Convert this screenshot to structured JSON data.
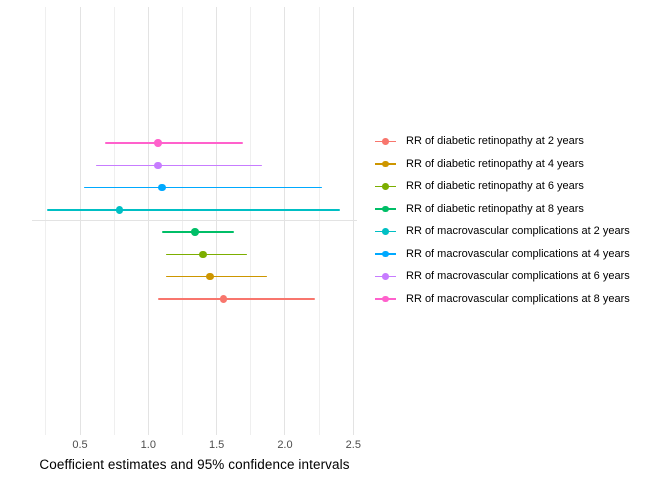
{
  "figure": {
    "background_color": "#ffffff",
    "grid_major_color": "#e3e3e3",
    "grid_minor_color": "#efefef",
    "tick_label_color": "#4d4d4d",
    "axis_title_color": "#000000",
    "legend_text_color": "#000000"
  },
  "chart_data": {
    "type": "scatter",
    "subtype": "forest-plot-error-bars",
    "title": "",
    "xlabel": "Coefficient estimates and 95% confidence intervals",
    "ylabel": "",
    "xlim": [
      0.15,
      2.55
    ],
    "x_major_ticks": [
      0.5,
      1.0,
      1.5,
      2.0,
      2.5
    ],
    "x_tick_labels": [
      "0.5",
      "1.0",
      "1.5",
      "2.0",
      "2.5"
    ],
    "x_minor_gridlines": [
      0.25,
      0.75,
      1.25,
      1.75,
      2.25
    ],
    "grid": "on",
    "y_axis_labels": "none",
    "legend_position": "right",
    "group_separator_between": "macrovascular and retinopathy groups",
    "row_order_top_to_bottom": [
      7,
      6,
      5,
      4,
      3,
      2,
      1,
      0
    ],
    "separator_after_row": 3,
    "series": [
      {
        "label": "RR of diabetic retinopathy at 2 years",
        "color": "#F8766D",
        "estimate": 1.55,
        "ci_lower": 1.07,
        "ci_upper": 2.22
      },
      {
        "label": "RR of diabetic retinopathy at 4 years",
        "color": "#CD9600",
        "estimate": 1.45,
        "ci_lower": 1.13,
        "ci_upper": 1.87
      },
      {
        "label": "RR of diabetic retinopathy at 6 years",
        "color": "#7CAE00",
        "estimate": 1.4,
        "ci_lower": 1.13,
        "ci_upper": 1.72
      },
      {
        "label": "RR of diabetic retinopathy at 8 years",
        "color": "#00BE67",
        "estimate": 1.34,
        "ci_lower": 1.1,
        "ci_upper": 1.63
      },
      {
        "label": "RR of macrovascular complications at 2 years",
        "color": "#00BFC4",
        "estimate": 0.79,
        "ci_lower": 0.26,
        "ci_upper": 2.4
      },
      {
        "label": "RR of macrovascular complications at 4 years",
        "color": "#00A9FF",
        "estimate": 1.1,
        "ci_lower": 0.53,
        "ci_upper": 2.27
      },
      {
        "label": "RR of macrovascular complications at 6 years",
        "color": "#C77CFF",
        "estimate": 1.07,
        "ci_lower": 0.62,
        "ci_upper": 1.83
      },
      {
        "label": "RR of macrovascular complications at 8 years",
        "color": "#FF61CC",
        "estimate": 1.07,
        "ci_lower": 0.68,
        "ci_upper": 1.69
      }
    ]
  }
}
